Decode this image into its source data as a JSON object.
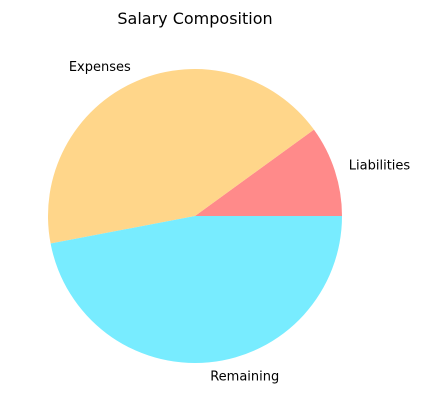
{
  "chart_data": {
    "type": "pie",
    "title": "Salary Composition",
    "slices": [
      {
        "label": "Liabilities",
        "value": 10,
        "color": "#ff8a8a"
      },
      {
        "label": "Expenses",
        "value": 43,
        "color": "#ffd68a"
      },
      {
        "label": "Remaining",
        "value": 47,
        "color": "#78ecff"
      }
    ],
    "start_angle": "0 degrees (3 o'clock)",
    "direction": "counter-clockwise",
    "legend": "none"
  }
}
